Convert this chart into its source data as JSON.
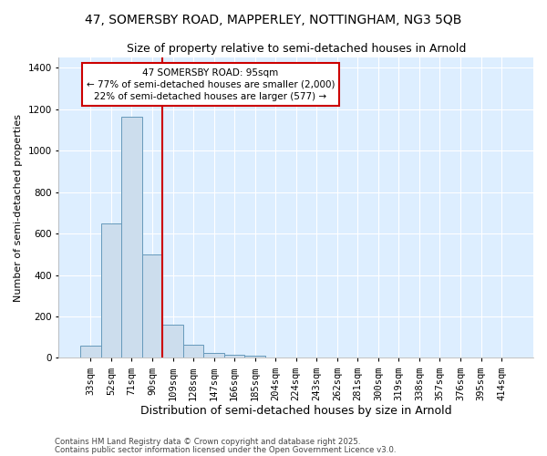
{
  "title_line1": "47, SOMERSBY ROAD, MAPPERLEY, NOTTINGHAM, NG3 5QB",
  "title_line2": "Size of property relative to semi-detached houses in Arnold",
  "xlabel": "Distribution of semi-detached houses by size in Arnold",
  "ylabel": "Number of semi-detached properties",
  "footnote1": "Contains HM Land Registry data © Crown copyright and database right 2025.",
  "footnote2": "Contains public sector information licensed under the Open Government Licence v3.0.",
  "bar_labels": [
    "33sqm",
    "52sqm",
    "71sqm",
    "90sqm",
    "109sqm",
    "128sqm",
    "147sqm",
    "166sqm",
    "185sqm",
    "204sqm",
    "224sqm",
    "243sqm",
    "262sqm",
    "281sqm",
    "300sqm",
    "319sqm",
    "338sqm",
    "357sqm",
    "376sqm",
    "395sqm",
    "414sqm"
  ],
  "bar_values": [
    60,
    650,
    1165,
    500,
    160,
    62,
    25,
    15,
    10,
    0,
    0,
    0,
    0,
    0,
    0,
    0,
    0,
    0,
    0,
    0,
    0
  ],
  "bar_color": "#ccdded",
  "bar_edge_color": "#6699bb",
  "annotation_text": "47 SOMERSBY ROAD: 95sqm\n← 77% of semi-detached houses are smaller (2,000)\n22% of semi-detached houses are larger (577) →",
  "annotation_box_color": "#ffffff",
  "annotation_border_color": "#cc0000",
  "ylim": [
    0,
    1450
  ],
  "plot_bg_color": "#ddeeff",
  "fig_bg_color": "#ffffff",
  "grid_color": "#ffffff",
  "red_line_color": "#cc0000"
}
